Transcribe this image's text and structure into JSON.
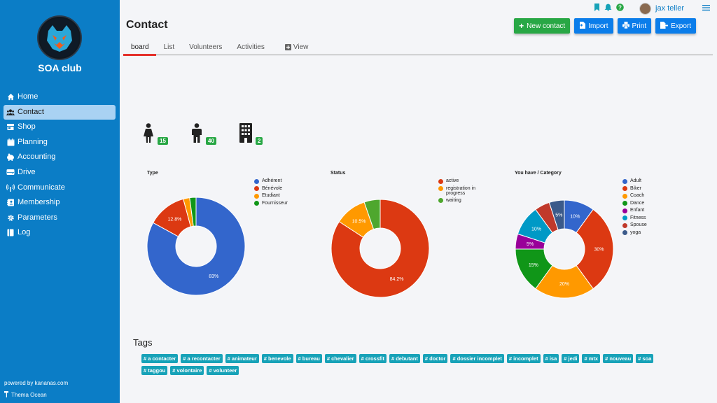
{
  "sidebar": {
    "club_name": "SOA club",
    "items": [
      {
        "label": "Home",
        "icon": "home-icon"
      },
      {
        "label": "Contact",
        "icon": "users-icon",
        "active": true
      },
      {
        "label": "Shop",
        "icon": "shop-icon"
      },
      {
        "label": "Planning",
        "icon": "calendar-icon"
      },
      {
        "label": "Accounting",
        "icon": "piggy-bank-icon"
      },
      {
        "label": "Drive",
        "icon": "hdd-icon"
      },
      {
        "label": "Communicate",
        "icon": "broadcast-icon"
      },
      {
        "label": "Membership",
        "icon": "id-card-icon"
      },
      {
        "label": "Parameters",
        "icon": "gear-icon"
      },
      {
        "label": "Log",
        "icon": "log-icon"
      }
    ],
    "footer_powered": "powered by kananas.com",
    "footer_theme": "Thema Ocean"
  },
  "topbar": {
    "user_name": "jax teller"
  },
  "header": {
    "title": "Contact",
    "buttons": {
      "new_contact": "New contact",
      "import": "Import",
      "print": "Print",
      "export": "Export"
    }
  },
  "tabs": [
    "board",
    "List",
    "Volunteers",
    "Activities",
    "View"
  ],
  "stats": {
    "individuals_female": "15",
    "individuals_male": "40",
    "organizations": "2"
  },
  "chart_data": [
    {
      "type": "pie",
      "title": "Type",
      "categories": [
        "Adhérent",
        "Bénévole",
        "Etudiant",
        "Fournisseur"
      ],
      "values": [
        83,
        12.8,
        2.1,
        2.1
      ],
      "data_labels": [
        "83%",
        "12.8%",
        "",
        ""
      ],
      "colors": [
        "#3366cc",
        "#dc3912",
        "#ff9900",
        "#109618"
      ],
      "legend": "right"
    },
    {
      "type": "pie",
      "title": "Status",
      "categories": [
        "active",
        "registration in progress",
        "waiting"
      ],
      "values": [
        84.2,
        10.5,
        5.3
      ],
      "data_labels": [
        "84.2%",
        "10.5%",
        ""
      ],
      "colors": [
        "#dc3912",
        "#ff9900",
        "#4ea72e"
      ],
      "legend": "right"
    },
    {
      "type": "pie",
      "title": "You have / Category",
      "categories": [
        "Adult",
        "Biker",
        "Coach",
        "Dance",
        "Enfant",
        "Fitness",
        "Spouse",
        "yoga"
      ],
      "values": [
        10,
        30,
        20,
        15,
        5,
        10,
        5,
        5
      ],
      "data_labels": [
        "10%",
        "30%",
        "20%",
        "15%",
        "5%",
        "10%",
        "",
        "5%"
      ],
      "colors": [
        "#3366cc",
        "#dc3912",
        "#ff9900",
        "#109618",
        "#990099",
        "#0099c6",
        "#c0392b",
        "#3b5a8a"
      ],
      "legend": "right"
    }
  ],
  "tags": {
    "title": "Tags",
    "items": [
      "# a contacter",
      "# a recontacter",
      "# animateur",
      "# benevole",
      "# bureau",
      "# chevalier",
      "# crossfit",
      "# debutant",
      "# doctor",
      "# dossier incomplet",
      "# incomplet",
      "# isa",
      "# jedi",
      "# mtx",
      "# nouveau",
      "# soa",
      "# taggou",
      "# volontaire",
      "# volunteer"
    ]
  }
}
